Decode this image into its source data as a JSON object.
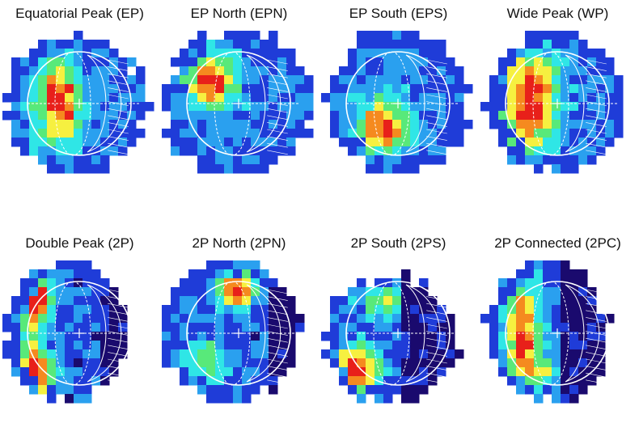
{
  "panels": [
    {
      "title": "Equatorial Peak (EP)",
      "pattern": "EP"
    },
    {
      "title": "EP North (EPN)",
      "pattern": "EPN"
    },
    {
      "title": "EP South (EPS)",
      "pattern": "EPS"
    },
    {
      "title": "Wide Peak (WP)",
      "pattern": "WP"
    },
    {
      "title": "Double Peak (2P)",
      "pattern": "2P"
    },
    {
      "title": "2P North (2PN)",
      "pattern": "2PN"
    },
    {
      "title": "2P South (2PS)",
      "pattern": "2PS"
    },
    {
      "title": "2P Connected (2PC)",
      "pattern": "2PC"
    }
  ],
  "colors": {
    "dark_blue": "#1a0a6e",
    "blue": "#1f3cd8",
    "light_blue": "#2aa0ef",
    "cyan": "#2fe6e6",
    "green": "#58e97a",
    "yellow": "#f6f040",
    "orange": "#f58a1f",
    "red": "#e8201a",
    "overlay": "#ffffff"
  }
}
